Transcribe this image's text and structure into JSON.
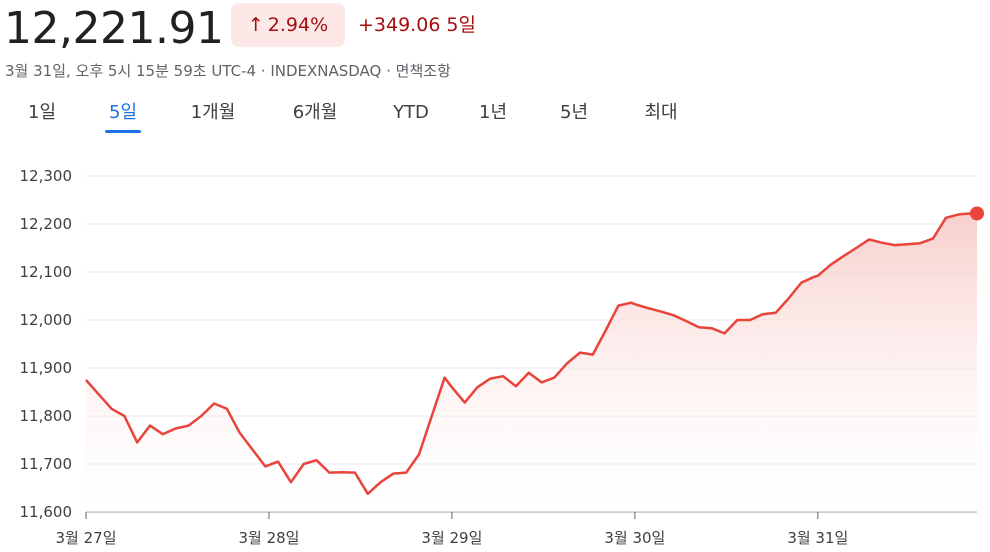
{
  "header": {
    "price": "12,221.91",
    "change_percent": "2.94%",
    "change_abs": "+349.06",
    "period": "5일",
    "meta": "3월 31일, 오후 5시 15분 59초 UTC-4 · INDEXNASDAQ · 면책조항"
  },
  "tabs": [
    {
      "label": "1일",
      "active": false
    },
    {
      "label": "5일",
      "active": true
    },
    {
      "label": "1개월",
      "active": false
    },
    {
      "label": "6개월",
      "active": false
    },
    {
      "label": "YTD",
      "active": false
    },
    {
      "label": "1년",
      "active": false
    },
    {
      "label": "5년",
      "active": false
    },
    {
      "label": "최대",
      "active": false
    }
  ],
  "colors": {
    "line": "#e8443a",
    "fill_top": "#f6c7c3",
    "up": "#a50e0e",
    "pill_bg": "#fce8e6",
    "accent": "#1a73e8",
    "grid": "#e8eaed"
  },
  "chart_data": {
    "type": "area",
    "ylim": [
      11600,
      12300
    ],
    "yticks": [
      12300,
      12200,
      12100,
      12000,
      11900,
      11800,
      11700,
      11600
    ],
    "ytick_labels": [
      "12,300",
      "12,200",
      "12,100",
      "12,000",
      "11,900",
      "11,800",
      "11,700",
      "11,600"
    ],
    "xlim": [
      0,
      4.87
    ],
    "xticks": [
      0,
      1,
      2,
      3,
      4
    ],
    "xtick_labels": [
      "3월 27일",
      "3월 28일",
      "3월 29일",
      "3월 30일",
      "3월 31일"
    ],
    "grid": true,
    "series": [
      {
        "x": [
          0,
          0.14,
          0.21,
          0.28,
          0.35,
          0.42,
          0.49,
          0.56,
          0.63,
          0.7,
          0.77,
          0.84,
          0.91,
          0.98,
          1.05,
          1.12,
          1.19,
          1.26,
          1.33,
          1.4,
          1.47,
          1.54,
          1.61,
          1.68,
          1.75,
          1.82,
          1.89,
          1.96,
          2.0,
          2.07,
          2.14,
          2.21,
          2.28,
          2.35,
          2.42,
          2.49,
          2.56,
          2.63,
          2.7,
          2.77,
          2.84,
          2.91,
          2.98,
          3.0,
          3.07,
          3.14,
          3.21,
          3.28,
          3.35,
          3.42,
          3.49,
          3.56,
          3.63,
          3.7,
          3.77,
          3.84,
          3.91,
          3.98,
          4.0,
          4.07,
          4.14,
          4.21,
          4.28,
          4.35,
          4.42,
          4.49,
          4.56,
          4.63,
          4.7,
          4.77,
          4.84,
          4.87
        ],
        "values": [
          11875,
          11815,
          11800,
          11745,
          11780,
          11762,
          11774,
          11780,
          11800,
          11826,
          11815,
          11765,
          11730,
          11695,
          11705,
          11662,
          11700,
          11708,
          11682,
          11683,
          11682,
          11638,
          11662,
          11680,
          11682,
          11720,
          11800,
          11880,
          11860,
          11828,
          11860,
          11878,
          11883,
          11862,
          11890,
          11870,
          11880,
          11910,
          11932,
          11928,
          11978,
          12030,
          12036,
          12033,
          12025,
          12018,
          12010,
          11998,
          11985,
          11983,
          11972,
          12000,
          12000,
          12012,
          12015,
          12045,
          12078,
          12090,
          12092,
          12115,
          12133,
          12150,
          12168,
          12161,
          12156,
          12158,
          12160,
          12170,
          12213,
          12220,
          12222,
          12222
        ]
      }
    ]
  }
}
